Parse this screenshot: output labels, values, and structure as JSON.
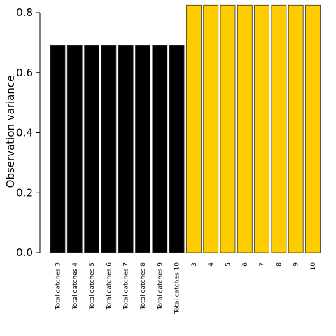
{
  "chart_data": {
    "type": "bar",
    "title": "",
    "xlabel": "",
    "ylabel": "Observation variance",
    "ylim": [
      0,
      0.8
    ],
    "yticks": [
      0.0,
      0.2,
      0.4,
      0.6,
      0.8
    ],
    "ytick_labels": [
      "0.0",
      "0.2",
      "0.4",
      "0.6",
      "0.8"
    ],
    "grid": false,
    "legend": "none",
    "categories": [
      "Total catches 3",
      "Total catches 4",
      "Total catches 5",
      "Total catches 6",
      "Total catches 7",
      "Total catches 8",
      "Total catches 9",
      "Total catches 10",
      "3",
      "4",
      "5",
      "6",
      "7",
      "8",
      "9",
      "10"
    ],
    "values": [
      0.69,
      0.69,
      0.69,
      0.69,
      0.69,
      0.69,
      0.69,
      0.69,
      0.825,
      0.825,
      0.825,
      0.825,
      0.825,
      0.825,
      0.825,
      0.825
    ],
    "colors": [
      "#000000",
      "#000000",
      "#000000",
      "#000000",
      "#000000",
      "#000000",
      "#000000",
      "#000000",
      "#FFCC00",
      "#FFCC00",
      "#FFCC00",
      "#FFCC00",
      "#FFCC00",
      "#FFCC00",
      "#FFCC00",
      "#FFCC00"
    ]
  }
}
